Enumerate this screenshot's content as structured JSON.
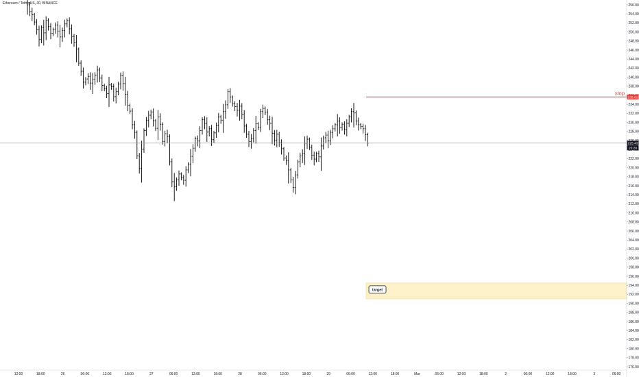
{
  "header": {
    "symbol_line": "Ethereum / TetherUS, 30, BINANCE"
  },
  "colors": {
    "bars": "#000000",
    "stop_line": "#e53935",
    "stop_text": "#e53935",
    "price_line": "#9e9e9e",
    "target_zone_fill": "#fdf1c9",
    "target_zone_border": "#f2d98a",
    "axis_text": "#131722",
    "price_badge_bg": "#131722",
    "price_badge_text": "#ffffff",
    "stop_badge_bg": "#e53935",
    "stop_badge_text": "#ffffff"
  },
  "chart_data": {
    "type": "ohlc",
    "title": "Ethereum / TetherUS, 30, BINANCE",
    "xlabel": "",
    "ylabel": "",
    "ylim": [
      175,
      257
    ],
    "grid": false,
    "y_ticks": [
      "256.00",
      "254.00",
      "252.00",
      "250.00",
      "248.00",
      "246.00",
      "244.00",
      "242.00",
      "240.00",
      "238.00",
      "236.00",
      "234.00",
      "232.00",
      "230.00",
      "228.00",
      "226.00",
      "224.00",
      "222.00",
      "220.00",
      "218.00",
      "216.00",
      "214.00",
      "212.00",
      "210.00",
      "208.00",
      "206.00",
      "204.00",
      "202.00",
      "200.00",
      "198.00",
      "196.00",
      "194.00",
      "192.00",
      "190.00",
      "188.00",
      "186.00",
      "184.00",
      "182.00",
      "180.00",
      "178.00",
      "176.00"
    ],
    "x_ticks": [
      "12:00",
      "18:00",
      "26",
      "06:00",
      "12:00",
      "18:00",
      "27",
      "06:00",
      "12:00",
      "18:00",
      "28",
      "06:00",
      "12:00",
      "18:00",
      "29",
      "06:00",
      "12:00",
      "18:00",
      "Mar",
      "06:00",
      "12:00",
      "18:00",
      "2",
      "06:00",
      "12:00",
      "18:00",
      "3",
      "06:00"
    ],
    "closes": [
      256,
      254.5,
      253.8,
      252.2,
      250.5,
      248.3,
      251,
      249.8,
      252.5,
      251.2,
      249.7,
      250.6,
      251.5,
      250.2,
      248.9,
      250.3,
      251.8,
      252.5,
      250.7,
      249,
      247.6,
      246.2,
      243.1,
      241.3,
      238.9,
      239.6,
      240.2,
      238.7,
      239.5,
      240.4,
      241.6,
      239.8,
      238.2,
      237.5,
      236.4,
      238.3,
      237.9,
      235.7,
      236.8,
      238.5,
      240.3,
      238.6,
      236.2,
      233.8,
      232.5,
      229.5,
      227.8,
      222.6,
      219.8,
      224.1,
      228.2,
      230.5,
      231.6,
      232.3,
      230.4,
      228.7,
      231.2,
      229.6,
      225.8,
      227.5,
      226.9,
      221.3,
      216.9,
      215.8,
      217.3,
      218.6,
      217.8,
      217.2,
      219.5,
      220.8,
      222.5,
      224.3,
      226.4,
      225.9,
      228.2,
      230.6,
      229.8,
      227.9,
      228.6,
      226.2,
      227.7,
      229.3,
      231.2,
      230.5,
      232.4,
      233.9,
      236.8,
      235.6,
      234.1,
      233.5,
      232.7,
      233.6,
      231.8,
      229.2,
      227.4,
      225.8,
      226.5,
      228.2,
      229.7,
      228.9,
      232.4,
      233.1,
      232.3,
      230.6,
      229.8,
      227.6,
      226.1,
      227.4,
      225.5,
      224.2,
      222.1,
      221.6,
      219.5,
      217.3,
      215.6,
      218.4,
      221.3,
      222.6,
      223.1,
      225.4,
      226.3,
      224.5,
      222.7,
      221.9,
      223.1,
      222.4,
      224.8,
      226.6,
      227.2,
      225.9,
      227.8,
      228.6,
      229.5,
      230.3,
      228.9,
      229.6,
      228.4,
      229.8,
      231.2,
      232.4,
      232.1,
      230.3,
      229.5,
      229.1,
      228.6,
      227.3,
      225.43
    ],
    "annotations": {
      "stop": {
        "label": "stop",
        "price": 235.61,
        "badge": "235.61"
      },
      "last_price": {
        "price": 225.43,
        "badge": "225.43",
        "countdown": "25:28"
      },
      "target_zone": {
        "label": "target",
        "from": 191.0,
        "to": 194.5
      }
    }
  }
}
